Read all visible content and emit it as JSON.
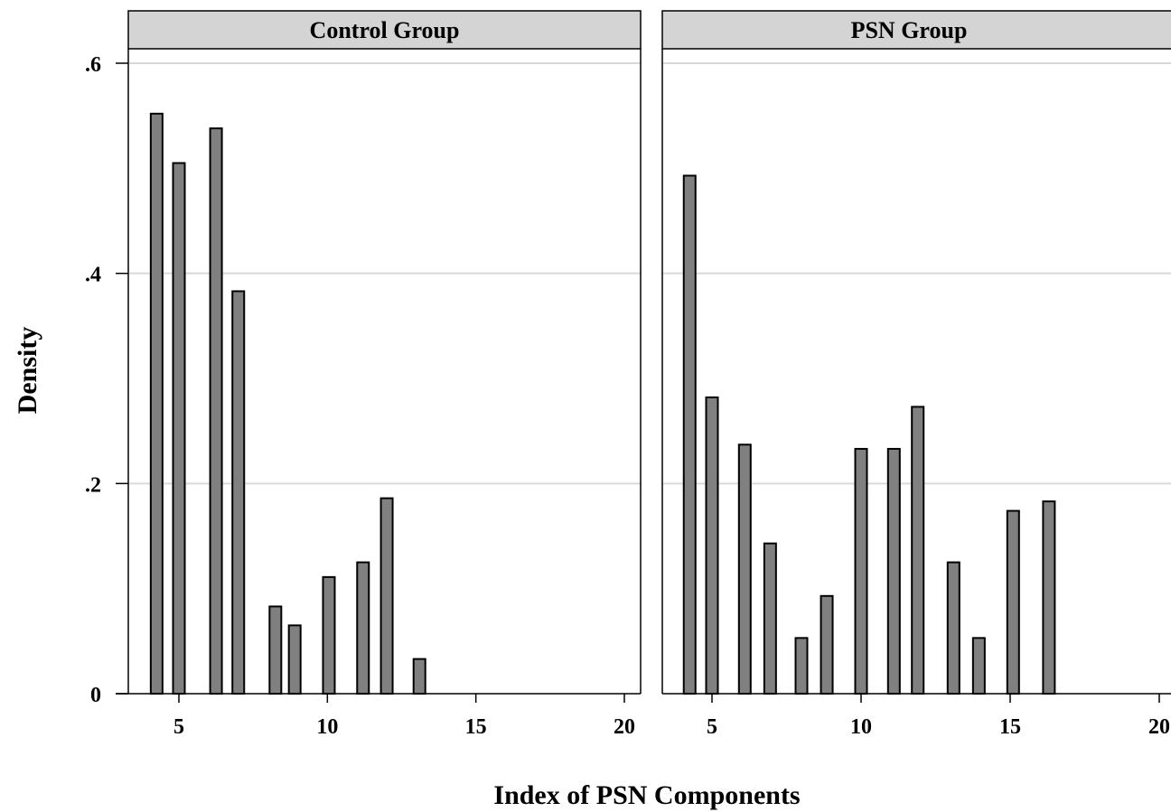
{
  "chart_data": {
    "type": "bar",
    "xlabel": "Index of PSN Components",
    "ylabel": "Density",
    "xlim": [
      3.2,
      20.5
    ],
    "ylim": [
      0,
      0.6
    ],
    "xticks": [
      5,
      10,
      15,
      20
    ],
    "xtick_labels": [
      "5",
      "10",
      "15",
      "20"
    ],
    "yticks": [
      0,
      0.2,
      0.4,
      0.6
    ],
    "ytick_labels": [
      "0",
      ".2",
      ".4",
      ".6"
    ],
    "grid": true,
    "bar_color": "#808080",
    "panels": [
      {
        "title": "Control Group",
        "x": [
          4.25,
          5.0,
          6.25,
          7.0,
          8.25,
          8.9,
          10.05,
          11.2,
          12.0,
          13.1
        ],
        "values": [
          0.552,
          0.505,
          0.538,
          0.383,
          0.083,
          0.065,
          0.111,
          0.125,
          0.186,
          0.033
        ]
      },
      {
        "title": "PSN Group",
        "x": [
          4.25,
          5.0,
          6.1,
          6.95,
          8.0,
          8.85,
          10.0,
          11.1,
          11.9,
          13.1,
          13.95,
          15.1,
          16.3
        ],
        "values": [
          0.493,
          0.282,
          0.237,
          0.143,
          0.053,
          0.093,
          0.233,
          0.233,
          0.273,
          0.125,
          0.053,
          0.174,
          0.183
        ]
      }
    ]
  }
}
